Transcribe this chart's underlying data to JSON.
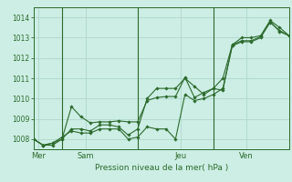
{
  "title": "",
  "xlabel": "Pression niveau de la mer( hPa )",
  "ylabel": "",
  "bg_color": "#cceee4",
  "grid_color": "#aad4c8",
  "line_color": "#2d6a2d",
  "marker_color": "#2d6a2d",
  "ylim": [
    1007.5,
    1014.5
  ],
  "xlim": [
    0,
    27
  ],
  "yticks": [
    1008,
    1009,
    1010,
    1011,
    1012,
    1013,
    1014
  ],
  "day_labels": [
    "Mer",
    "Sam",
    "Jeu",
    "Ven"
  ],
  "day_positions": [
    0.5,
    5.5,
    15.5,
    22.5
  ],
  "vline_positions": [
    3,
    11,
    19
  ],
  "series": [
    [
      1008.0,
      1007.7,
      1007.7,
      1008.0,
      1009.6,
      1009.1,
      1008.8,
      1008.85,
      1008.85,
      1008.9,
      1008.85,
      1008.85,
      1009.9,
      1010.05,
      1010.1,
      1010.1,
      1011.05,
      1010.05,
      1010.3,
      1010.5,
      1010.4,
      1012.65,
      1012.85,
      1012.85,
      1013.05,
      1013.75,
      1013.35,
      1013.1
    ],
    [
      1008.0,
      1007.7,
      1007.8,
      1008.0,
      1008.5,
      1008.5,
      1008.4,
      1008.7,
      1008.7,
      1008.6,
      1008.2,
      1008.5,
      1010.0,
      1010.5,
      1010.5,
      1010.5,
      1011.0,
      1010.6,
      1010.2,
      1010.5,
      1011.0,
      1012.65,
      1013.0,
      1013.0,
      1013.1,
      1013.85,
      1013.5,
      1013.1
    ],
    [
      1008.0,
      1007.7,
      1007.8,
      1008.1,
      1008.4,
      1008.3,
      1008.3,
      1008.5,
      1008.5,
      1008.5,
      1008.0,
      1008.1,
      1008.6,
      1008.5,
      1008.5,
      1008.0,
      1010.2,
      1009.9,
      1010.0,
      1010.2,
      1010.5,
      1012.6,
      1012.8,
      1012.8,
      1013.0,
      1013.8,
      1013.3,
      1013.1
    ]
  ]
}
